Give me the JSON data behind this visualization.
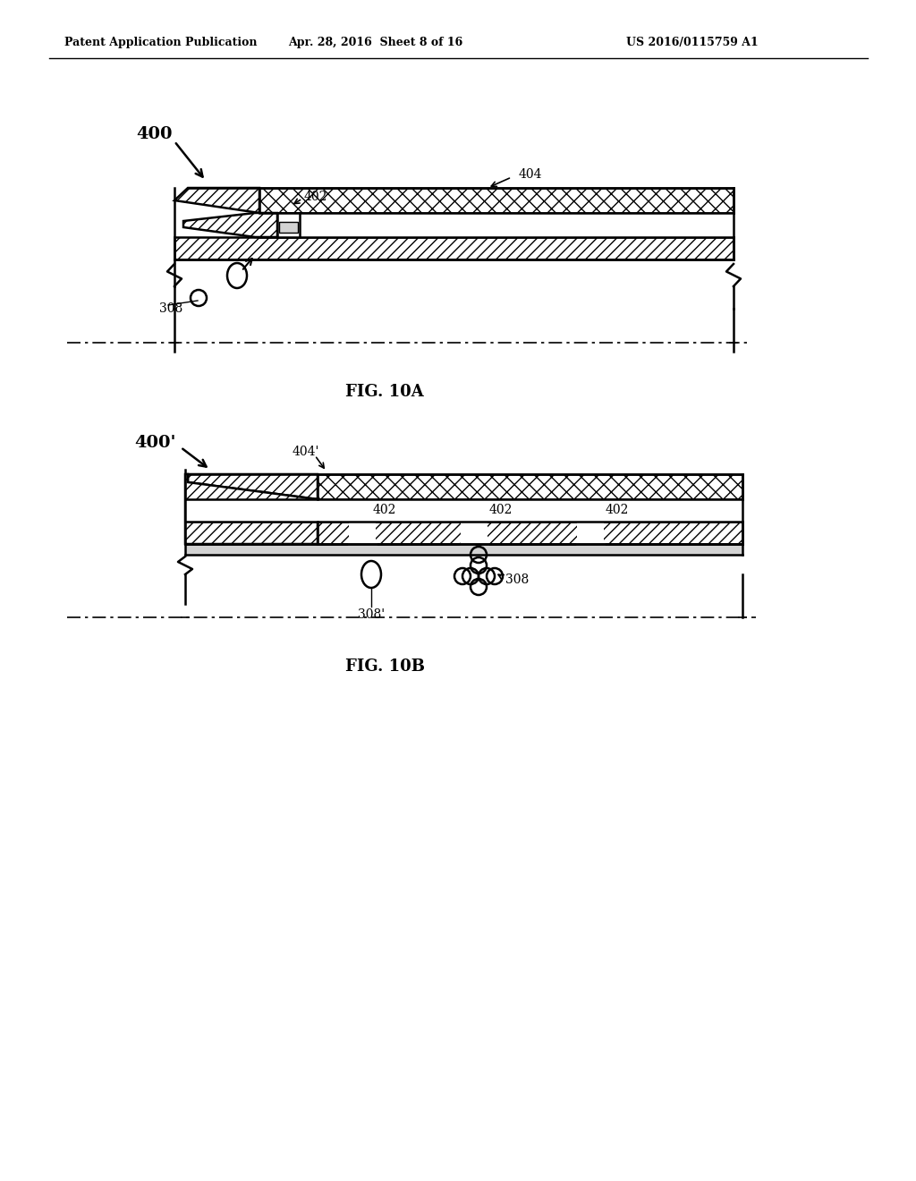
{
  "header_left": "Patent Application Publication",
  "header_center": "Apr. 28, 2016  Sheet 8 of 16",
  "header_right": "US 2016/0115759 A1",
  "fig_label_10a": "FIG. 10A",
  "fig_label_10b": "FIG. 10B",
  "label_400": "400",
  "label_400p": "400'",
  "label_402_10a": "402",
  "label_404_10a": "404",
  "label_308_10a": "308",
  "label_402_10b": "402",
  "label_404p": "404'",
  "label_308_10b": "308",
  "label_308p": "308'",
  "bg_color": "#ffffff",
  "line_color": "#000000"
}
